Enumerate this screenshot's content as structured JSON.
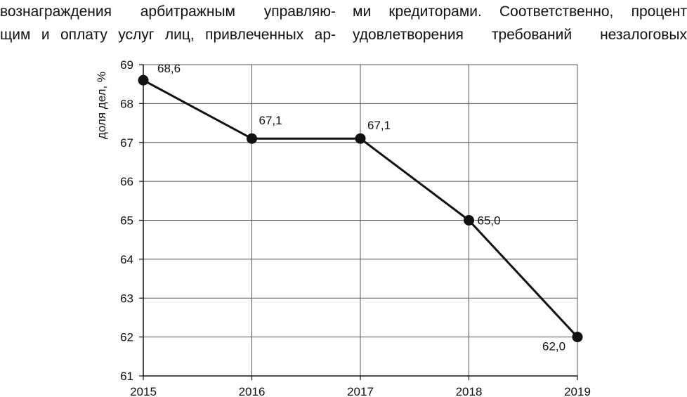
{
  "text": {
    "left_lines": [
      "вознаграждения арбитражным управляю-",
      "щим и оплату услуг лиц, привлеченных ар-"
    ],
    "right_lines": [
      "ми кредиторами. Соответственно, процент",
      "удовлетворения требований незалоговых"
    ]
  },
  "chart_data": {
    "type": "line",
    "x": [
      2015,
      2016,
      2017,
      2018,
      2019
    ],
    "series": [
      {
        "values": [
          68.6,
          67.1,
          67.1,
          65.0,
          62.0
        ]
      }
    ],
    "data_labels": [
      "68,6",
      "67,1",
      "67,1",
      "65,0",
      "62,0"
    ],
    "x_tick_labels": [
      "2015",
      "2016",
      "2017",
      "2018",
      "2019"
    ],
    "y_tick_labels": [
      "61",
      "62",
      "63",
      "64",
      "65",
      "66",
      "67",
      "68",
      "69"
    ],
    "xlabel": "",
    "ylabel": "доля дел, %",
    "ylim": [
      61,
      69
    ],
    "grid": true,
    "line_color": "#111111",
    "grid_color": "#555555"
  }
}
